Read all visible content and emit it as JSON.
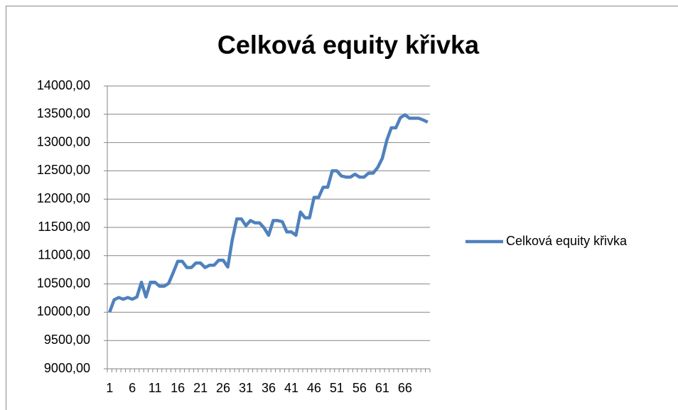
{
  "chart_data": {
    "type": "line",
    "title": "Celková equity křivka",
    "categories": [
      "1",
      null,
      null,
      null,
      null,
      "6",
      null,
      null,
      null,
      null,
      "11",
      null,
      null,
      null,
      null,
      "16",
      null,
      null,
      null,
      null,
      "21",
      null,
      null,
      null,
      null,
      "26",
      null,
      null,
      null,
      null,
      "31",
      null,
      null,
      null,
      null,
      "36",
      null,
      null,
      null,
      null,
      "41",
      null,
      null,
      null,
      null,
      "46",
      null,
      null,
      null,
      null,
      "51",
      null,
      null,
      null,
      null,
      "56",
      null,
      null,
      null,
      null,
      "61",
      null,
      null,
      null,
      null,
      "66",
      null,
      null,
      null,
      null,
      null
    ],
    "series": [
      {
        "name": "Celková equity křivka",
        "color": "#4f81bd",
        "values": [
          10000,
          10220,
          10260,
          10230,
          10260,
          10230,
          10270,
          10530,
          10270,
          10530,
          10530,
          10460,
          10460,
          10510,
          10700,
          10900,
          10900,
          10790,
          10790,
          10870,
          10870,
          10790,
          10830,
          10830,
          10920,
          10920,
          10800,
          11280,
          11650,
          11650,
          11530,
          11620,
          11580,
          11580,
          11490,
          11360,
          11620,
          11620,
          11600,
          11420,
          11420,
          11360,
          11770,
          11670,
          11670,
          12030,
          12030,
          12210,
          12210,
          12500,
          12500,
          12410,
          12390,
          12390,
          12440,
          12390,
          12390,
          12460,
          12460,
          12560,
          12720,
          13040,
          13260,
          13260,
          13440,
          13490,
          13430,
          13430,
          13430,
          13400,
          13360
        ]
      }
    ],
    "ylim": [
      9000,
      14000
    ],
    "yticks": [
      {
        "value": 9000,
        "label": "9000,00"
      },
      {
        "value": 9500,
        "label": "9500,00"
      },
      {
        "value": 10000,
        "label": "10000,00"
      },
      {
        "value": 10500,
        "label": "10500,00"
      },
      {
        "value": 11000,
        "label": "11000,00"
      },
      {
        "value": 11500,
        "label": "11500,00"
      },
      {
        "value": 12000,
        "label": "12000,00"
      },
      {
        "value": 12500,
        "label": "12500,00"
      },
      {
        "value": 13000,
        "label": "13000,00"
      },
      {
        "value": 13500,
        "label": "13500,00"
      },
      {
        "value": 14000,
        "label": "14000,00"
      }
    ],
    "grid": true,
    "legend": "right"
  }
}
